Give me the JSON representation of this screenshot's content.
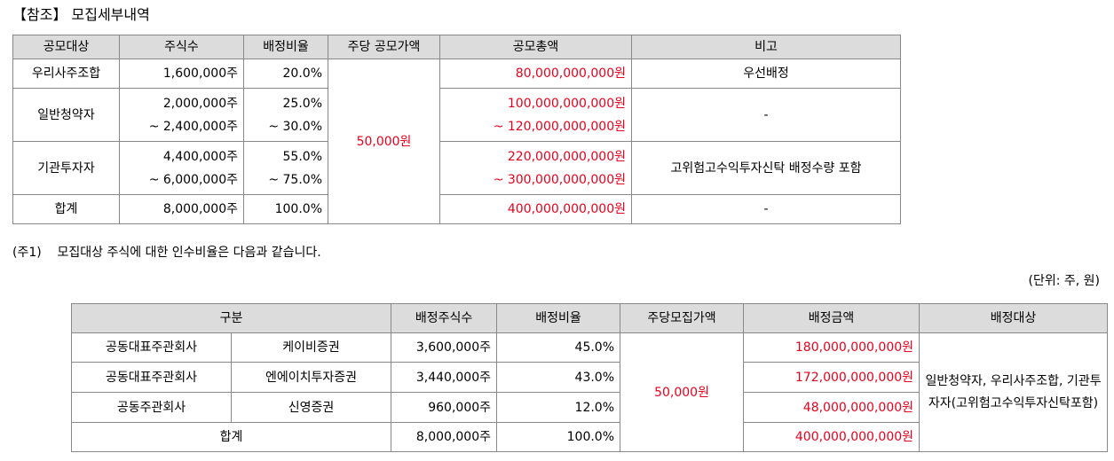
{
  "title": "【참조】 모집세부내역",
  "table1": {
    "headers": [
      "공모대상",
      "주식수",
      "배정비율",
      "주당 공모가액",
      "공모총액",
      "비고"
    ],
    "price": "50,000원",
    "rows": [
      {
        "target": "우리사주조합",
        "shares": [
          "1,600,000주"
        ],
        "ratio": [
          "20.0%"
        ],
        "total": [
          "80,000,000,000원"
        ],
        "remark": "우선배정"
      },
      {
        "target": "일반청약자",
        "shares": [
          "2,000,000주",
          "~ 2,400,000주"
        ],
        "ratio": [
          "25.0%",
          "~ 30.0%"
        ],
        "total": [
          "100,000,000,000원",
          "~ 120,000,000,000원"
        ],
        "remark": "-"
      },
      {
        "target": "기관투자자",
        "shares": [
          "4,400,000주",
          "~ 6,000,000주"
        ],
        "ratio": [
          "55.0%",
          "~ 75.0%"
        ],
        "total": [
          "220,000,000,000원",
          "~ 300,000,000,000원"
        ],
        "remark": "고위험고수익투자신탁 배정수량 포함"
      },
      {
        "target": "합계",
        "shares": [
          "8,000,000주"
        ],
        "ratio": [
          "100.0%"
        ],
        "total": [
          "400,000,000,000원"
        ],
        "remark": "-"
      }
    ]
  },
  "note": "(주1)    모집대상 주식에 대한 인수비율은 다음과 같습니다.",
  "unit": "(단위: 주, 원)",
  "table2": {
    "headers": [
      "구분",
      "배정주식수",
      "배정비율",
      "주당모집가액",
      "배정금액",
      "배정대상"
    ],
    "price": "50,000원",
    "target": "일반청약자, 우리사주조합, 기관투자자(고위험고수익투자신탁포함)",
    "rows": [
      {
        "role": "공동대표주관회사",
        "firm": "케이비증권",
        "shares": "3,600,000주",
        "ratio": "45.0%",
        "amount": "180,000,000,000원"
      },
      {
        "role": "공동대표주관회사",
        "firm": "엔에이치투자증권",
        "shares": "3,440,000주",
        "ratio": "43.0%",
        "amount": "172,000,000,000원"
      },
      {
        "role": "공동주관회사",
        "firm": "신영증권",
        "shares": "960,000주",
        "ratio": "12.0%",
        "amount": "48,000,000,000원"
      }
    ],
    "total": {
      "label": "합계",
      "shares": "8,000,000주",
      "ratio": "100.0%",
      "amount": "400,000,000,000원"
    }
  }
}
